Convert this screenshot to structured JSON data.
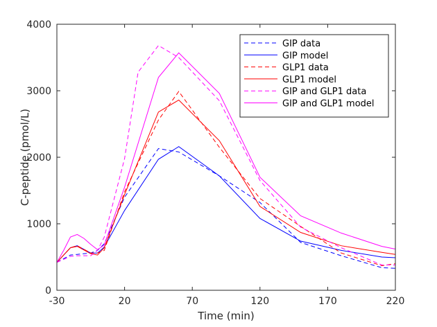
{
  "chart_data": {
    "type": "line",
    "xlabel": "Time (min)",
    "ylabel": "C-peptide (pmol/L)",
    "xlim": [
      -30,
      220
    ],
    "ylim": [
      0,
      4000
    ],
    "xticks": [
      -30,
      20,
      70,
      120,
      170,
      220
    ],
    "yticks": [
      0,
      1000,
      2000,
      3000,
      4000
    ],
    "xtick_labels": [
      "-30",
      "20",
      "70",
      "120",
      "170",
      "220"
    ],
    "ytick_labels": [
      "0",
      "1000",
      "2000",
      "3000",
      "4000"
    ],
    "grid": false,
    "legend_position": "top-right",
    "series": [
      {
        "name": "GIP data",
        "color": "#0000ff",
        "style": "dashed",
        "x": [
          -30,
          -20,
          -15,
          -5,
          0,
          5,
          20,
          45,
          60,
          90,
          120,
          150,
          180,
          210,
          220
        ],
        "y": [
          420,
          530,
          540,
          560,
          600,
          700,
          1400,
          2130,
          2080,
          1720,
          1320,
          720,
          520,
          340,
          330
        ]
      },
      {
        "name": "GIP model",
        "color": "#0000ff",
        "style": "solid",
        "x": [
          -30,
          -20,
          -15,
          -5,
          0,
          5,
          20,
          45,
          60,
          90,
          120,
          150,
          180,
          210,
          220
        ],
        "y": [
          420,
          640,
          670,
          560,
          560,
          650,
          1200,
          1970,
          2160,
          1720,
          1080,
          740,
          600,
          500,
          490
        ]
      },
      {
        "name": "GLP1 data",
        "color": "#ff0000",
        "style": "dashed",
        "x": [
          -30,
          -20,
          -15,
          -5,
          0,
          5,
          20,
          45,
          60,
          90,
          120,
          150,
          180,
          210,
          220
        ],
        "y": [
          420,
          640,
          670,
          560,
          560,
          600,
          1480,
          2560,
          2990,
          2150,
          1380,
          960,
          560,
          370,
          400
        ]
      },
      {
        "name": "GLP1 model",
        "color": "#ff0000",
        "style": "solid",
        "x": [
          -30,
          -20,
          -15,
          -5,
          0,
          5,
          20,
          45,
          60,
          90,
          120,
          150,
          180,
          210,
          220
        ],
        "y": [
          420,
          640,
          660,
          550,
          530,
          640,
          1440,
          2680,
          2860,
          2250,
          1260,
          870,
          670,
          570,
          540
        ]
      },
      {
        "name": "GIP and GLP1 data",
        "color": "#ff00ff",
        "style": "dashed",
        "x": [
          -30,
          -20,
          -15,
          -5,
          0,
          5,
          20,
          30,
          45,
          60,
          90,
          120,
          150,
          180,
          210,
          220
        ],
        "y": [
          420,
          510,
          520,
          520,
          600,
          800,
          1980,
          3280,
          3680,
          3500,
          2850,
          1650,
          950,
          640,
          380,
          380
        ]
      },
      {
        "name": "GIP and GLP1 model",
        "color": "#ff00ff",
        "style": "solid",
        "x": [
          -30,
          -25,
          -20,
          -15,
          -10,
          -5,
          0,
          5,
          20,
          45,
          60,
          90,
          120,
          150,
          180,
          210,
          220
        ],
        "y": [
          420,
          600,
          800,
          840,
          780,
          690,
          610,
          680,
          1550,
          3200,
          3570,
          2960,
          1700,
          1120,
          860,
          660,
          620
        ]
      }
    ]
  }
}
